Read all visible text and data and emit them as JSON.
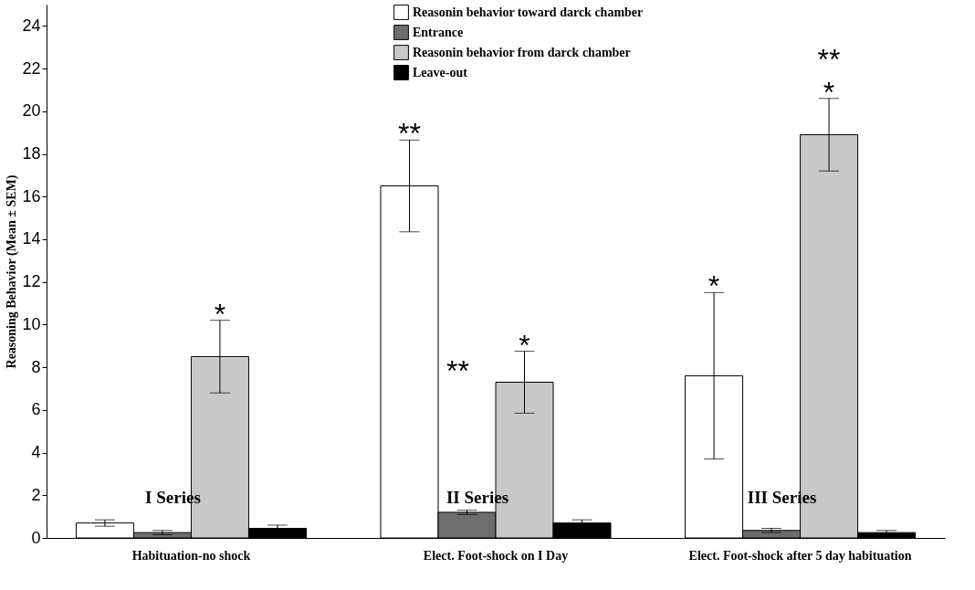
{
  "chart_data": {
    "type": "bar",
    "ylabel": "Reasoning Behavior (Mean ± SEM)",
    "categories": [
      "Habituation-no shock",
      "Elect. Foot-shock on I Day",
      "Elect. Foot-shock after 5 day habituation"
    ],
    "series": [
      {
        "name": "Reasonin behavior toward darck chamber",
        "color": "#ffffff",
        "values": [
          0.7,
          16.5,
          7.6
        ],
        "errors": [
          0.15,
          2.15,
          3.9
        ]
      },
      {
        "name": "Entrance",
        "color": "#6e6e6e",
        "values": [
          0.25,
          1.2,
          0.35
        ],
        "errors": [
          0.1,
          0.1,
          0.1
        ]
      },
      {
        "name": "Reasonin behavior from darck chamber",
        "color": "#c8c8c8",
        "values": [
          8.5,
          7.3,
          18.9
        ],
        "errors": [
          1.7,
          1.45,
          1.7
        ]
      },
      {
        "name": "Leave-out",
        "color": "#000000",
        "values": [
          0.45,
          0.7,
          0.25
        ],
        "errors": [
          0.15,
          0.15,
          0.1
        ]
      }
    ],
    "ylim": [
      0,
      25
    ],
    "yticks": [
      0,
      2,
      4,
      6,
      8,
      10,
      12,
      14,
      16,
      18,
      20,
      22,
      24
    ],
    "grid": false,
    "legend": "top",
    "annotations": [
      "*",
      "**",
      "**",
      "*",
      "*",
      "*",
      "**",
      "I Series",
      "II Series",
      "III Series"
    ]
  }
}
